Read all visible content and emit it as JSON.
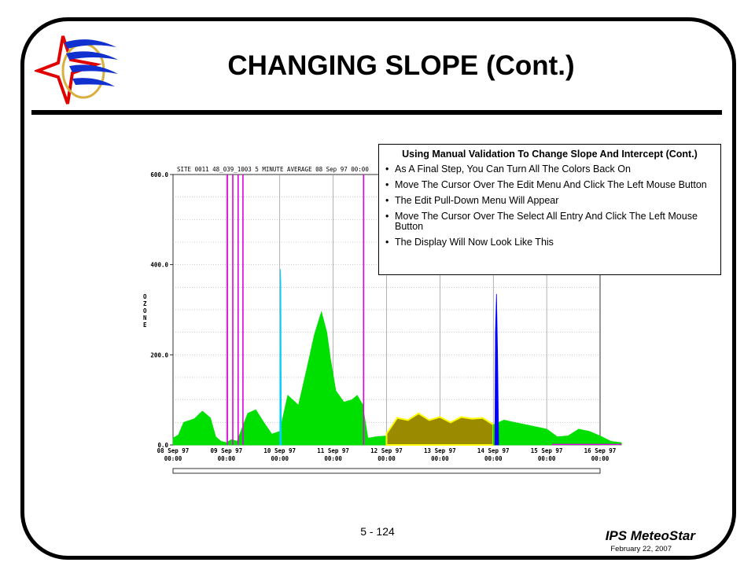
{
  "slide": {
    "title": "CHANGING SLOPE (Cont.)",
    "page_number": "5 - 124",
    "brand": "IPS MeteoStar",
    "date": "February 22, 2007"
  },
  "callout": {
    "title": "Using Manual Validation To Change  Slope And Intercept (Cont.)",
    "bullets": [
      "As A Final Step, You Can Turn  All The  Colors Back On",
      "Move The  Cursor Over The Edit Menu And Click The  Left Mouse Button",
      "The Edit Pull-Down Menu Will Appear",
      "Move The  Cursor Over The Select All Entry And Click The Left Mouse Button",
      "The Display Will Now Look Like This"
    ]
  },
  "chart": {
    "header": "SITE 0011 48_039_1003 5 MINUTE AVERAGE 08 Sep 97 00:00",
    "ylabel": "OZONE"
  },
  "chart_data": {
    "type": "area",
    "title": "SITE 0011 48_039_1003 5 MINUTE AVERAGE 08 Sep 97 00:00",
    "xlabel": "",
    "ylabel": "OZONE",
    "ylim": [
      0,
      600
    ],
    "yticks": [
      "600.0",
      "400.0",
      "200.0",
      "0.0"
    ],
    "x_ticks": [
      {
        "date": "08 Sep 97",
        "time": "00:00"
      },
      {
        "date": "09 Sep 97",
        "time": "00:00"
      },
      {
        "date": "10 Sep 97",
        "time": "00:00"
      },
      {
        "date": "11 Sep 97",
        "time": "00:00"
      },
      {
        "date": "12 Sep 97",
        "time": "00:00"
      },
      {
        "date": "13 Sep 97",
        "time": "00:00"
      },
      {
        "date": "14 Sep 97",
        "time": "00:00"
      },
      {
        "date": "15 Sep 97",
        "time": "00:00"
      },
      {
        "date": "16 Sep 97",
        "time": "00:00"
      }
    ],
    "grid": true,
    "colors": {
      "valid": "#00e000",
      "adjusted": "#9a8a00",
      "adjusted_edge": "#ffff00",
      "cyan": "#00d0ff",
      "blue": "#0000ff",
      "magenta": "#e000e0"
    },
    "series": [
      {
        "color": "valid",
        "points": [
          [
            0.0,
            15
          ],
          [
            0.1,
            22
          ],
          [
            0.2,
            50
          ],
          [
            0.4,
            58
          ],
          [
            0.55,
            75
          ],
          [
            0.7,
            60
          ],
          [
            0.8,
            18
          ],
          [
            0.9,
            8
          ],
          [
            1.0,
            5
          ],
          [
            1.1,
            12
          ],
          [
            1.2,
            8
          ],
          [
            1.4,
            70
          ],
          [
            1.55,
            78
          ],
          [
            1.7,
            50
          ],
          [
            1.85,
            24
          ],
          [
            2.0,
            30
          ],
          [
            2.15,
            110
          ],
          [
            2.35,
            88
          ],
          [
            2.5,
            165
          ],
          [
            2.65,
            245
          ],
          [
            2.78,
            295
          ],
          [
            2.88,
            250
          ],
          [
            2.95,
            190
          ],
          [
            3.05,
            120
          ],
          [
            3.2,
            95
          ],
          [
            3.35,
            100
          ],
          [
            3.45,
            110
          ],
          [
            3.55,
            90
          ],
          [
            3.65,
            15
          ],
          [
            3.8,
            18
          ],
          [
            4.0,
            20
          ]
        ]
      },
      {
        "color": "adjusted",
        "points": [
          [
            4.0,
            25
          ],
          [
            4.2,
            60
          ],
          [
            4.4,
            55
          ],
          [
            4.6,
            70
          ],
          [
            4.8,
            55
          ],
          [
            5.0,
            62
          ],
          [
            5.2,
            50
          ],
          [
            5.4,
            62
          ],
          [
            5.6,
            58
          ],
          [
            5.8,
            60
          ],
          [
            6.0,
            45
          ]
        ]
      },
      {
        "color": "valid",
        "points": [
          [
            6.0,
            45
          ],
          [
            6.2,
            55
          ],
          [
            6.4,
            50
          ],
          [
            6.6,
            45
          ],
          [
            6.8,
            40
          ],
          [
            7.0,
            35
          ],
          [
            7.2,
            18
          ],
          [
            7.4,
            20
          ],
          [
            7.6,
            35
          ],
          [
            7.8,
            30
          ],
          [
            8.0,
            20
          ],
          [
            8.2,
            8
          ],
          [
            8.4,
            5
          ]
        ]
      },
      {
        "color": "cyan",
        "points": [
          [
            2.0,
            0
          ],
          [
            2.01,
            390
          ],
          [
            2.02,
            360
          ],
          [
            2.03,
            0
          ]
        ]
      },
      {
        "color": "blue",
        "points": [
          [
            6.03,
            0
          ],
          [
            6.04,
            250
          ],
          [
            6.06,
            335
          ],
          [
            6.08,
            200
          ],
          [
            6.1,
            0
          ]
        ]
      }
    ],
    "markers": [
      {
        "color": "magenta",
        "x": 1.02
      },
      {
        "color": "magenta",
        "x": 1.12
      },
      {
        "color": "magenta",
        "x": 1.22
      },
      {
        "color": "magenta",
        "x": 1.31
      },
      {
        "color": "magenta",
        "x": 3.57
      }
    ]
  }
}
